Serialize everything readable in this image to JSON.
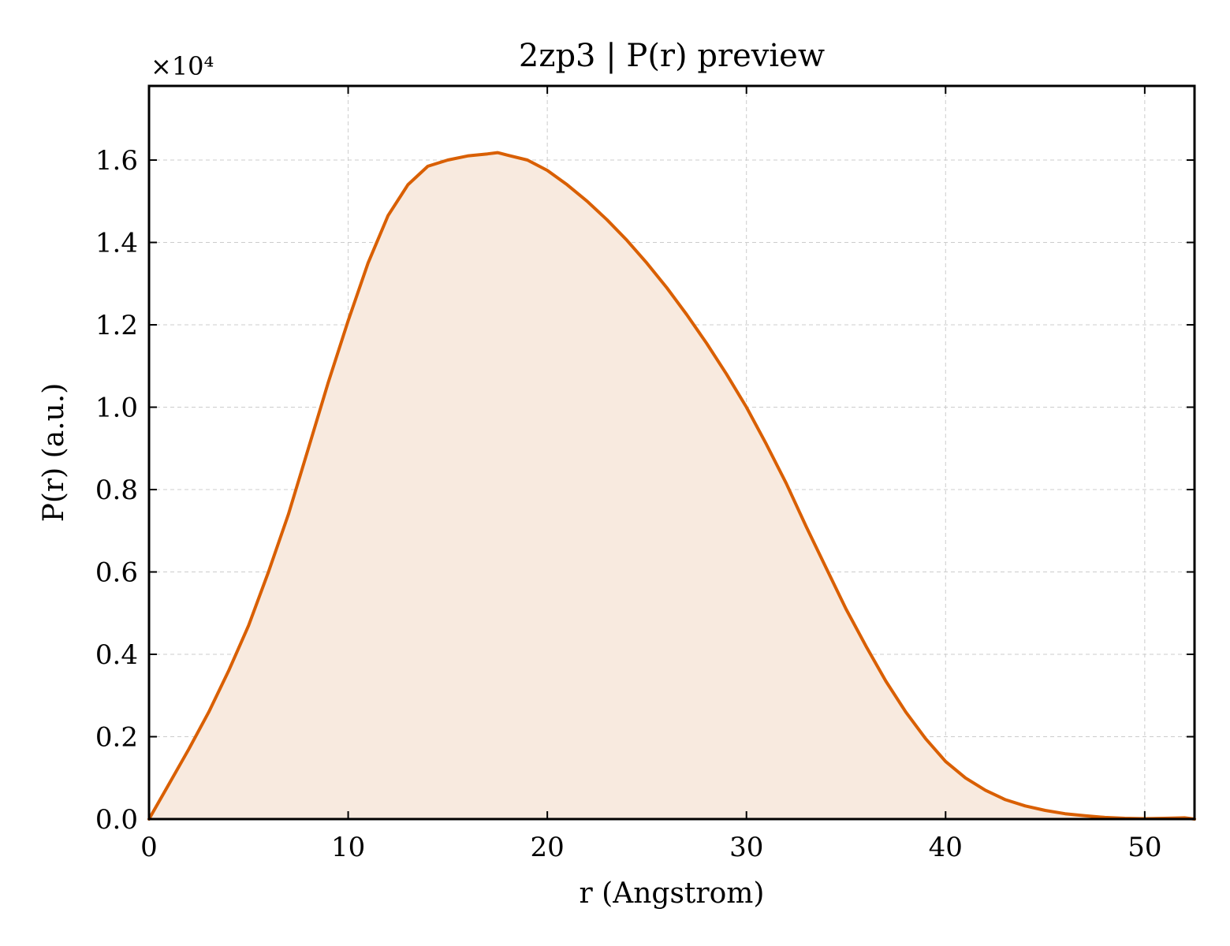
{
  "chart_data": {
    "type": "area",
    "title": "2zp3 | P(r) preview",
    "xlabel": "r (Angstrom)",
    "ylabel": "P(r) (a.u.)",
    "y_offset_label": "×10⁴",
    "y_scale_factor": 10000,
    "xlim": [
      0,
      52.5
    ],
    "ylim": [
      0,
      1.78
    ],
    "x_ticks": [
      0,
      10,
      20,
      30,
      40,
      50
    ],
    "x_tick_labels": [
      "0",
      "10",
      "20",
      "30",
      "40",
      "50"
    ],
    "y_ticks": [
      0,
      0.2,
      0.4,
      0.6,
      0.8,
      1.0,
      1.2,
      1.4,
      1.6
    ],
    "y_tick_labels": [
      "0.0",
      "0.2",
      "0.4",
      "0.6",
      "0.8",
      "1.0",
      "1.2",
      "1.4",
      "1.6"
    ],
    "grid": true,
    "legend": "none",
    "line_color": "#d95f02",
    "fill_color": "#f8eadf",
    "series": [
      {
        "x": [
          0,
          1,
          2,
          3,
          4,
          5,
          6,
          7,
          8,
          9,
          10,
          11,
          12,
          13,
          14,
          15,
          16,
          17,
          17.5,
          18,
          19,
          20,
          21,
          22,
          23,
          24,
          25,
          26,
          27,
          28,
          29,
          30,
          31,
          32,
          33,
          34,
          35,
          36,
          37,
          38,
          39,
          40,
          41,
          42,
          43,
          44,
          45,
          46,
          47,
          48,
          49,
          50,
          51,
          52,
          52.5
        ],
        "y": [
          0.0,
          0.085,
          0.17,
          0.26,
          0.36,
          0.47,
          0.6,
          0.74,
          0.9,
          1.06,
          1.21,
          1.35,
          1.465,
          1.54,
          1.585,
          1.6,
          1.61,
          1.615,
          1.618,
          1.612,
          1.6,
          1.575,
          1.54,
          1.5,
          1.455,
          1.405,
          1.35,
          1.29,
          1.225,
          1.155,
          1.08,
          1.0,
          0.91,
          0.815,
          0.71,
          0.61,
          0.51,
          0.42,
          0.335,
          0.26,
          0.195,
          0.14,
          0.1,
          0.07,
          0.047,
          0.032,
          0.021,
          0.013,
          0.008,
          0.004,
          0.002,
          0.001,
          0.002,
          0.003,
          0.0
        ]
      }
    ]
  }
}
